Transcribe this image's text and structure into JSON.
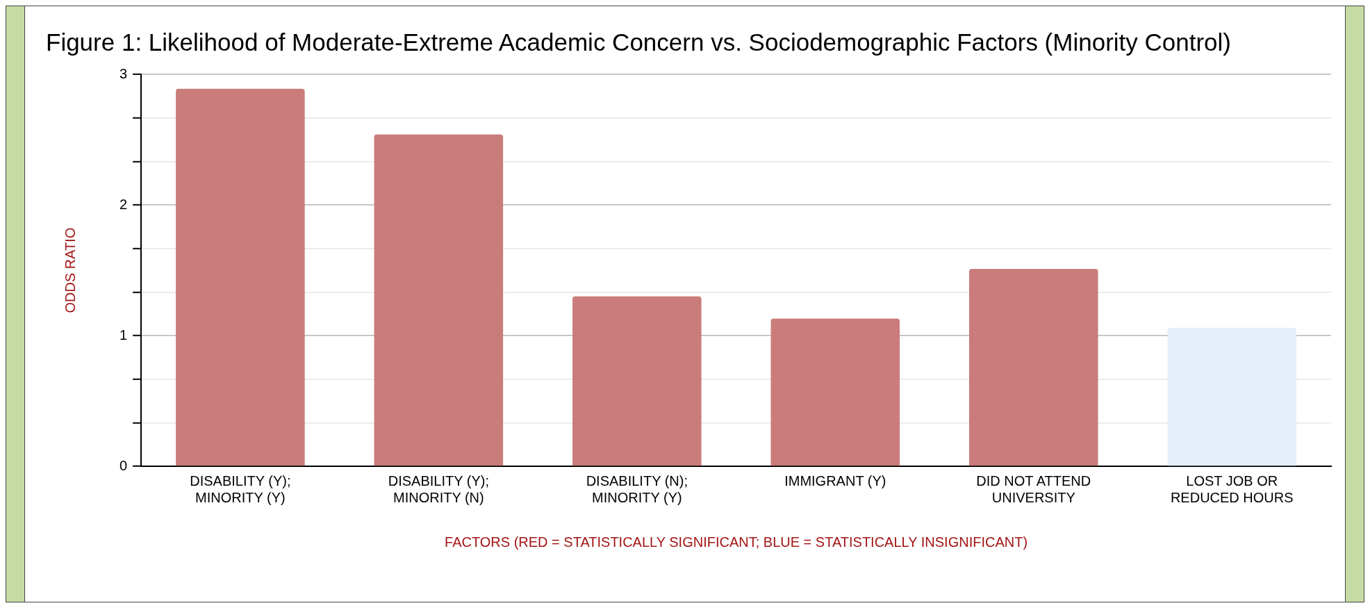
{
  "chart_data": {
    "type": "bar",
    "title": "Figure 1: Likelihood of Moderate-Extreme Academic Concern vs. Sociodemographic Factors (Minority Control)",
    "xlabel": "FACTORS (RED = STATISTICALLY SIGNIFICANT; BLUE = STATISTICALLY INSIGNIFICANT)",
    "ylabel": "ODDS RATIO",
    "categories": [
      "DISABILITY (Y); MINORITY (Y)",
      "DISABILITY (Y); MINORITY (N)",
      "DISABILITY (N); MINORITY (Y)",
      "IMMIGRANT (Y)",
      "DID NOT ATTEND UNIVERSITY",
      "LOST JOB OR REDUCED HOURS"
    ],
    "values": [
      2.89,
      2.54,
      1.3,
      1.13,
      1.51,
      1.06
    ],
    "colors": [
      "#c97c7a",
      "#c97c7a",
      "#c97c7a",
      "#c97c7a",
      "#c97c7a",
      "#e4edf8"
    ],
    "ylim": [
      0,
      3
    ],
    "yticks": [
      0,
      {
        "value": 0.333,
        "label": null
      },
      {
        "value": 0.667,
        "label": null
      },
      1,
      {
        "value": 1.333,
        "label": null
      },
      {
        "value": 1.667,
        "label": null
      },
      2,
      {
        "value": 2.333,
        "label": null
      },
      {
        "value": 2.667,
        "label": null
      },
      3
    ],
    "grid": "y",
    "legend": false
  }
}
